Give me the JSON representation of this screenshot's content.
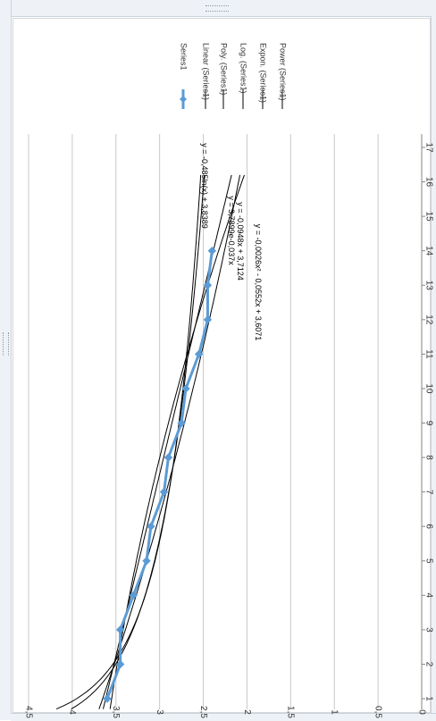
{
  "chart_data": {
    "type": "line",
    "title": "",
    "xlabel": "",
    "ylabel": "",
    "xlim": [
      1,
      17
    ],
    "ylim": [
      0,
      4.5
    ],
    "x_ticks": [
      "1",
      "2",
      "3",
      "4",
      "5",
      "6",
      "7",
      "8",
      "9",
      "10",
      "11",
      "12",
      "13",
      "14",
      "15",
      "16",
      "17"
    ],
    "y_ticks": [
      "0",
      "0,5",
      "1",
      "1,5",
      "2",
      "2,5",
      "3",
      "3,5",
      "4",
      "4,5"
    ],
    "grid": true,
    "orientation": "rotated 90 degrees clockwise",
    "legend_position": "top",
    "series": [
      {
        "name": "Series1",
        "kind": "data",
        "color": "#5b9bd5",
        "x": [
          1,
          2,
          3,
          4,
          5,
          6,
          7,
          8,
          9,
          10,
          11,
          12,
          13,
          14
        ],
        "y": [
          3.6,
          3.45,
          3.45,
          3.3,
          3.15,
          3.1,
          2.95,
          2.9,
          2.75,
          2.7,
          2.55,
          2.45,
          2.45,
          2.4
        ]
      },
      {
        "name": "Linear (Series1)",
        "kind": "trend",
        "color": "#000000"
      },
      {
        "name": "Poly. (Series1)",
        "kind": "trend",
        "color": "#000000"
      },
      {
        "name": "Log. (Series1)",
        "kind": "trend",
        "color": "#000000"
      },
      {
        "name": "Expon. (Series1)",
        "kind": "trend",
        "color": "#000000"
      },
      {
        "name": "Power (Series1)",
        "kind": "trend",
        "color": "#000000"
      }
    ],
    "trend_equations": [
      "y = -0,485ln(x) + 3,8389",
      "y = 3,7899e-0,037x",
      "y = -0,0948x + 3,7124",
      "y = -0,0026x² - 0,0552x + 3,6071"
    ]
  }
}
